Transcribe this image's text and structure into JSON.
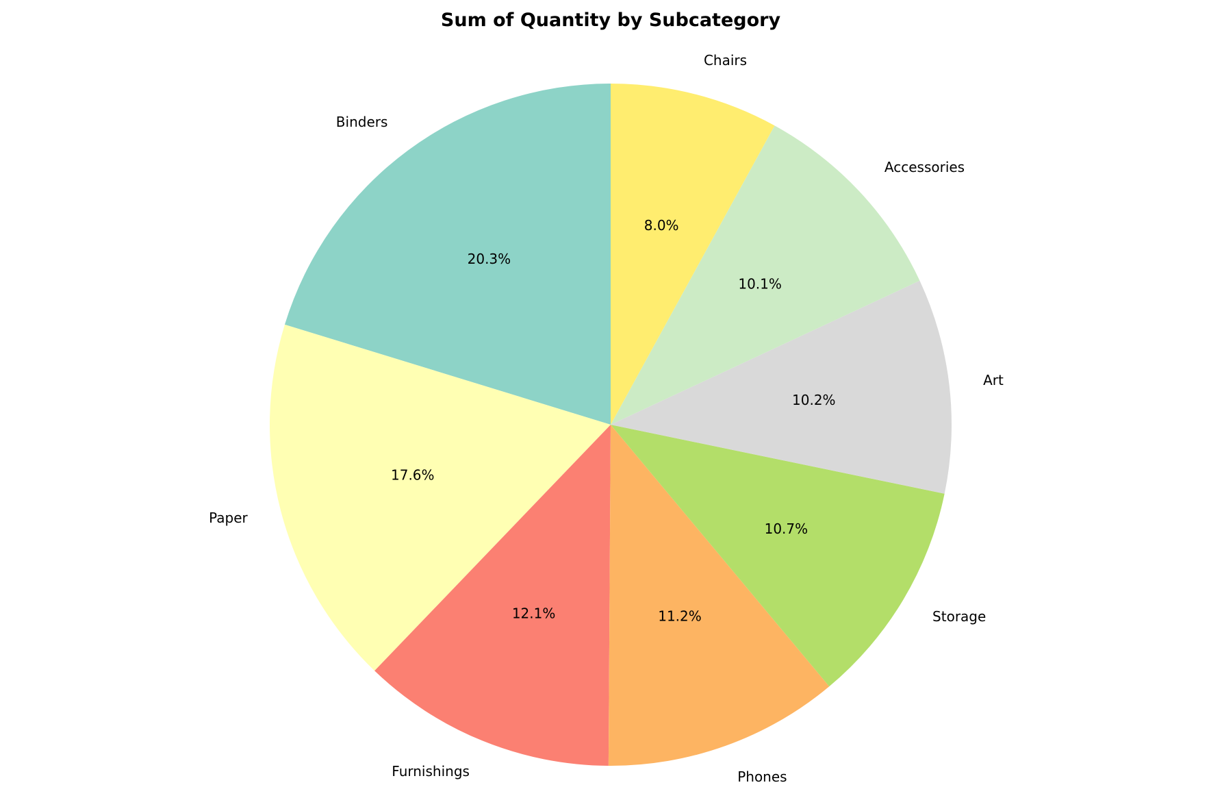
{
  "chart_data": {
    "type": "pie",
    "title": "Sum of Quantity by Subcategory",
    "slices": [
      {
        "label": "Binders",
        "value": 20.3,
        "pct_label": "20.3%",
        "color": "#8dd3c7"
      },
      {
        "label": "Paper",
        "value": 17.6,
        "pct_label": "17.6%",
        "color": "#ffffb3"
      },
      {
        "label": "Furnishings",
        "value": 12.1,
        "pct_label": "12.1%",
        "color": "#fb8072"
      },
      {
        "label": "Phones",
        "value": 11.2,
        "pct_label": "11.2%",
        "color": "#fdb462"
      },
      {
        "label": "Storage",
        "value": 10.7,
        "pct_label": "10.7%",
        "color": "#b3de69"
      },
      {
        "label": "Art",
        "value": 10.2,
        "pct_label": "10.2%",
        "color": "#d9d9d9"
      },
      {
        "label": "Accessories",
        "value": 10.1,
        "pct_label": "10.1%",
        "color": "#ccebc5"
      },
      {
        "label": "Chairs",
        "value": 8.0,
        "pct_label": "8.0%",
        "color": "#ffed6f"
      }
    ],
    "start_angle": "top",
    "direction": "counterclockwise"
  }
}
